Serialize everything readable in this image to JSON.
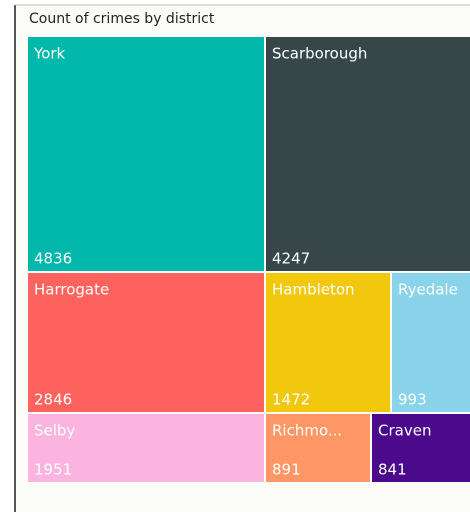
{
  "chart_data": {
    "type": "treemap",
    "title": "Count of crimes by district",
    "categories": [
      "York",
      "Scarborough",
      "Harrogate",
      "Hambleton",
      "Ryedale",
      "Selby",
      "Richmo...",
      "Craven"
    ],
    "values": [
      4836,
      4247,
      2846,
      1472,
      993,
      1951,
      891,
      841
    ],
    "colors": [
      "#01b8aa",
      "#374649",
      "#fd625e",
      "#f2c80f",
      "#8ad4eb",
      "#fbb4df",
      "#fe9666",
      "#4b0a8c"
    ]
  }
}
